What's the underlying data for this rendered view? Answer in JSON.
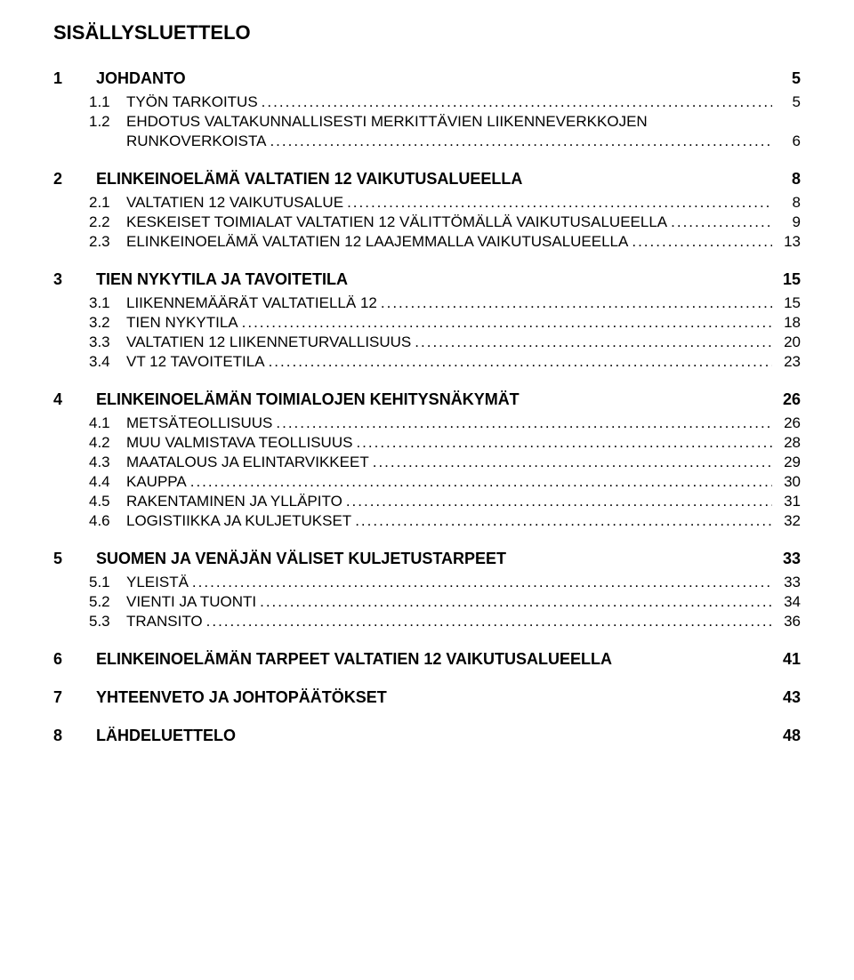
{
  "title": "SISÄLLYSLUETTELO",
  "entries": [
    {
      "level": 1,
      "num": "1",
      "text": "JOHDANTO",
      "page": "5",
      "leader": false
    },
    {
      "level": 2,
      "num": "1.1",
      "text": "TYÖN TARKOITUS",
      "page": "5",
      "leader": true,
      "smallcaps": true
    },
    {
      "level": 2,
      "num": "1.2",
      "text": "EHDOTUS VALTAKUNNALLISESTI MERKITTÄVIEN LIIKENNEVERKKOJEN",
      "page": "",
      "leader": false,
      "smallcaps": true
    },
    {
      "level": 2,
      "num": "",
      "text": "RUNKOVERKOISTA",
      "page": "6",
      "leader": true,
      "smallcaps": true
    },
    {
      "level": 1,
      "num": "2",
      "text": "ELINKEINOELÄMÄ VALTATIEN 12 VAIKUTUSALUEELLA",
      "page": "8",
      "leader": false
    },
    {
      "level": 2,
      "num": "2.1",
      "text": "VALTATIEN 12 VAIKUTUSALUE",
      "page": "8",
      "leader": true,
      "smallcaps": true
    },
    {
      "level": 2,
      "num": "2.2",
      "text": "KESKEISET TOIMIALAT VALTATIEN 12 VÄLITTÖMÄLLÄ VAIKUTUSALUEELLA",
      "page": "9",
      "leader": true,
      "smallcaps": true
    },
    {
      "level": 2,
      "num": "2.3",
      "text": "ELINKEINOELÄMÄ VALTATIEN 12 LAAJEMMALLA VAIKUTUSALUEELLA",
      "page": "13",
      "leader": true,
      "smallcaps": true
    },
    {
      "level": 1,
      "num": "3",
      "text": "TIEN NYKYTILA JA TAVOITETILA",
      "page": "15",
      "leader": false
    },
    {
      "level": 2,
      "num": "3.1",
      "text": "LIIKENNEMÄÄRÄT VALTATIELLÄ 12",
      "page": "15",
      "leader": true,
      "smallcaps": true
    },
    {
      "level": 2,
      "num": "3.2",
      "text": "TIEN NYKYTILA",
      "page": "18",
      "leader": true,
      "smallcaps": true
    },
    {
      "level": 2,
      "num": "3.3",
      "text": "VALTATIEN 12 LIIKENNETURVALLISUUS",
      "page": "20",
      "leader": true,
      "smallcaps": true
    },
    {
      "level": 2,
      "num": "3.4",
      "text": "VT 12 TAVOITETILA",
      "page": "23",
      "leader": true,
      "smallcaps": true
    },
    {
      "level": 1,
      "num": "4",
      "text": "ELINKEINOELÄMÄN TOIMIALOJEN KEHITYSNÄKYMÄT",
      "page": "26",
      "leader": false
    },
    {
      "level": 2,
      "num": "4.1",
      "text": "METSÄTEOLLISUUS",
      "page": "26",
      "leader": true,
      "smallcaps": true
    },
    {
      "level": 2,
      "num": "4.2",
      "text": "MUU VALMISTAVA TEOLLISUUS",
      "page": "28",
      "leader": true,
      "smallcaps": true
    },
    {
      "level": 2,
      "num": "4.3",
      "text": "MAATALOUS JA ELINTARVIKKEET",
      "page": "29",
      "leader": true,
      "smallcaps": true
    },
    {
      "level": 2,
      "num": "4.4",
      "text": "KAUPPA",
      "page": "30",
      "leader": true,
      "smallcaps": true
    },
    {
      "level": 2,
      "num": "4.5",
      "text": "RAKENTAMINEN JA YLLÄPITO",
      "page": "31",
      "leader": true,
      "smallcaps": true
    },
    {
      "level": 2,
      "num": "4.6",
      "text": "LOGISTIIKKA JA KULJETUKSET",
      "page": "32",
      "leader": true,
      "smallcaps": true
    },
    {
      "level": 1,
      "num": "5",
      "text": "SUOMEN JA VENÄJÄN VÄLISET KULJETUSTARPEET",
      "page": "33",
      "leader": false
    },
    {
      "level": 2,
      "num": "5.1",
      "text": "YLEISTÄ",
      "page": "33",
      "leader": true,
      "smallcaps": true
    },
    {
      "level": 2,
      "num": "5.2",
      "text": "VIENTI JA TUONTI",
      "page": "34",
      "leader": true,
      "smallcaps": true
    },
    {
      "level": 2,
      "num": "5.3",
      "text": "TRANSITO",
      "page": "36",
      "leader": true,
      "smallcaps": true
    },
    {
      "level": 1,
      "num": "6",
      "text": "ELINKEINOELÄMÄN TARPEET VALTATIEN 12 VAIKUTUSALUEELLA",
      "page": "41",
      "leader": false
    },
    {
      "level": 1,
      "num": "7",
      "text": "YHTEENVETO JA JOHTOPÄÄTÖKSET",
      "page": "43",
      "leader": false
    },
    {
      "level": 1,
      "num": "8",
      "text": "LÄHDELUETTELO",
      "page": "48",
      "leader": false
    }
  ],
  "leader_fill": "....................................................................................................................................................................."
}
